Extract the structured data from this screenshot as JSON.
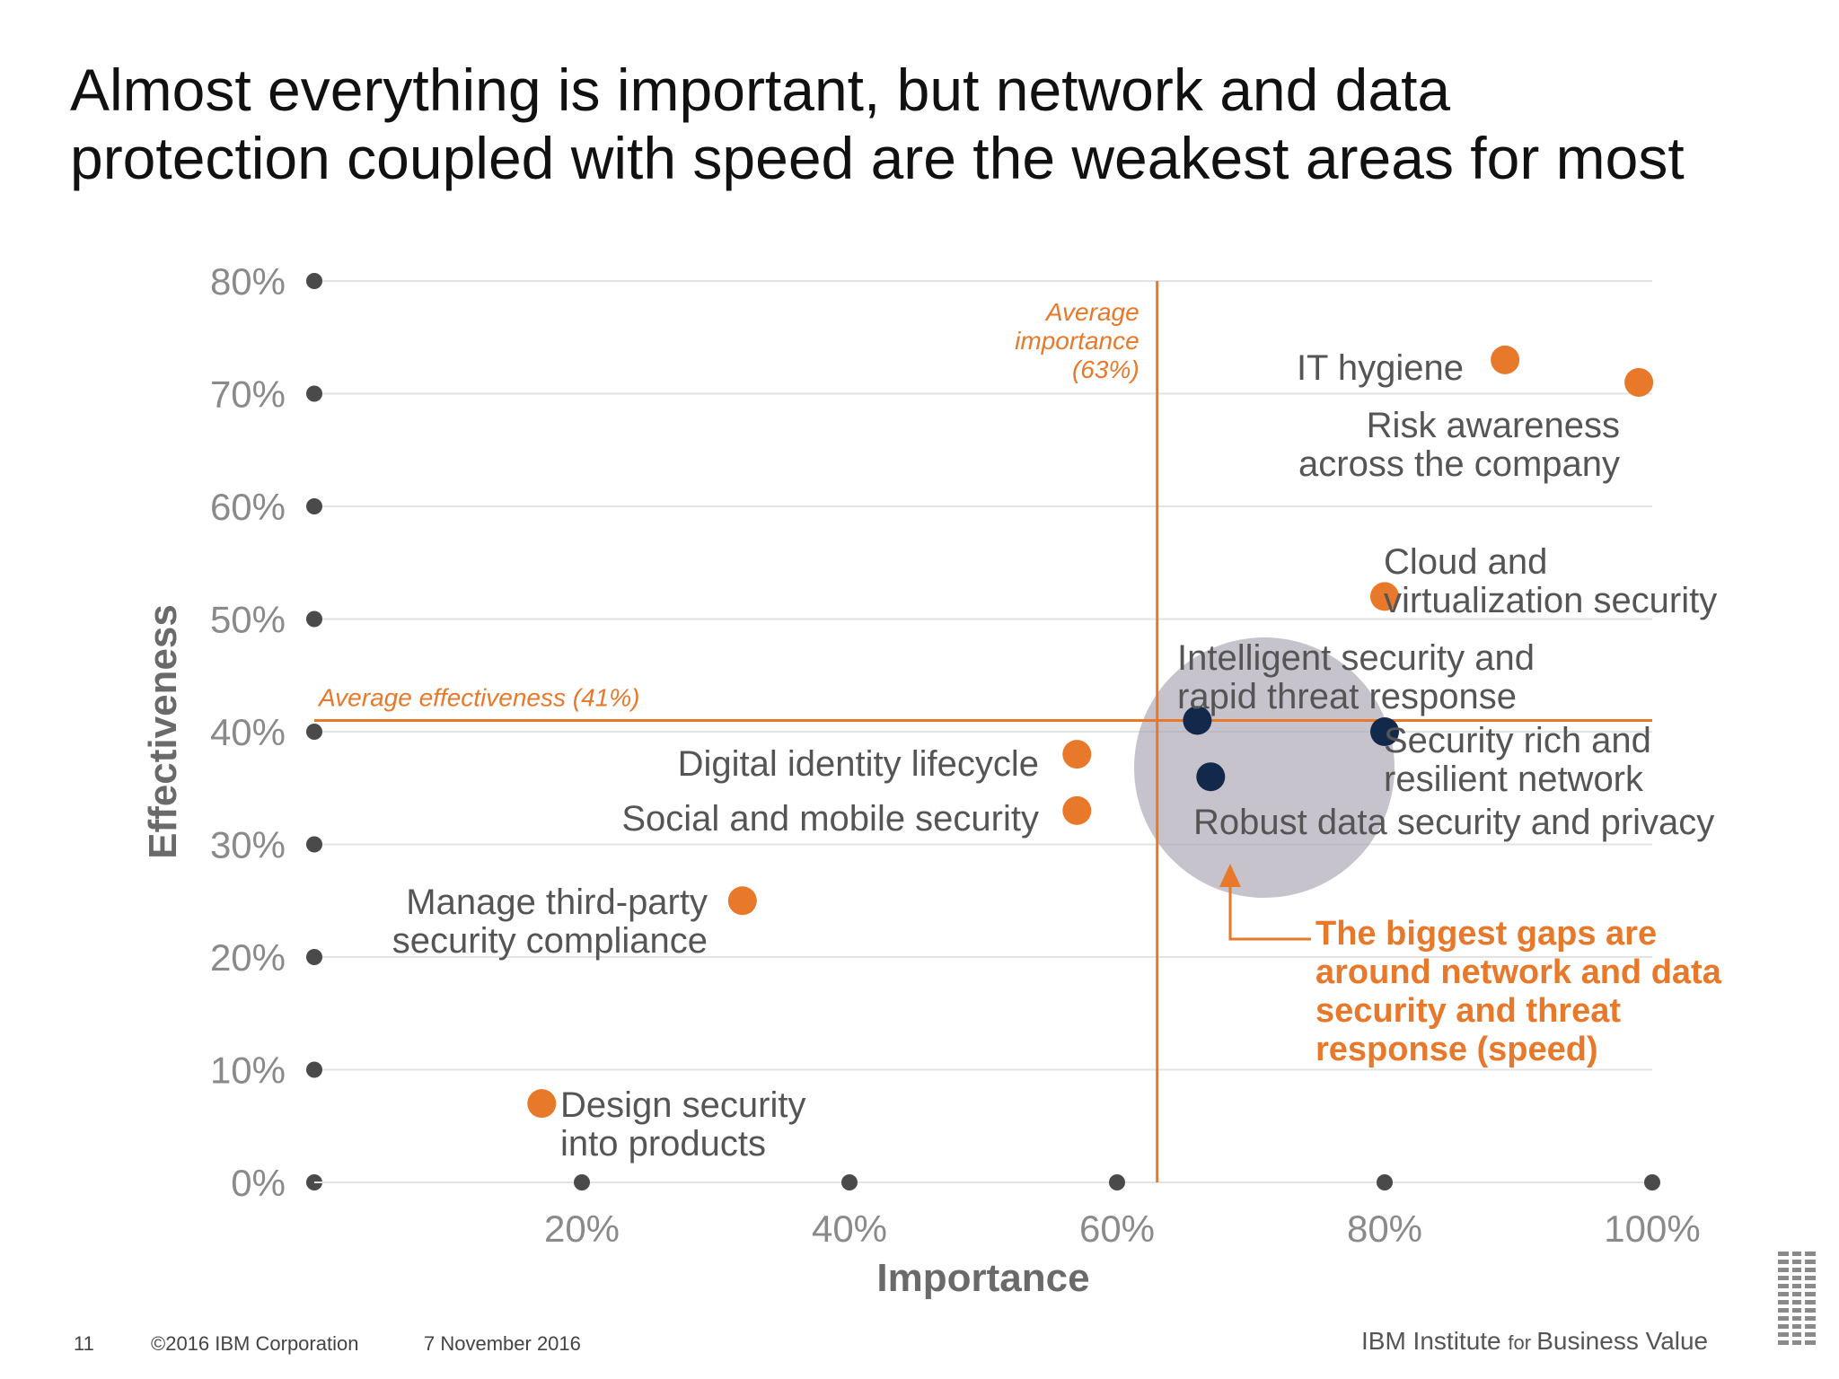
{
  "slide": {
    "title_line1": "Almost everything is important, but network and data",
    "title_line2": "protection coupled with speed are the weakest areas for most"
  },
  "footer": {
    "page_number": "11",
    "copyright": "©2016 IBM Corporation",
    "date": "7 November 2016",
    "brand_a": "IBM Institute ",
    "brand_b": "for ",
    "brand_c": "Business Value"
  },
  "colors": {
    "orange": "#e8782a",
    "navy": "#13294b",
    "axis_dot": "#4a4a4a",
    "grid": "#e3e3e3",
    "highlight": "#a8a3b1",
    "label": "#555555"
  },
  "chart_data": {
    "type": "scatter",
    "xlabel": "Importance",
    "ylabel": "Effectiveness",
    "xlim": [
      0,
      100
    ],
    "ylim": [
      0,
      80
    ],
    "x_ticks": [
      "20%",
      "40%",
      "60%",
      "80%",
      "100%"
    ],
    "y_ticks": [
      "0%",
      "10%",
      "20%",
      "30%",
      "40%",
      "50%",
      "60%",
      "70%",
      "80%"
    ],
    "grid": true,
    "reference_lines": [
      {
        "axis": "x",
        "value": 63,
        "label": [
          "Average",
          "importance",
          "(63%)"
        ]
      },
      {
        "axis": "y",
        "value": 41,
        "label": [
          "Average effectiveness (41%)"
        ]
      }
    ],
    "points": [
      {
        "label": [
          "IT hygiene"
        ],
        "x": 89,
        "y": 73,
        "group": "orange"
      },
      {
        "label": [
          "Risk awareness",
          "across the company"
        ],
        "x": 99,
        "y": 71,
        "group": "orange"
      },
      {
        "label": [
          "Cloud and",
          "virtualization security"
        ],
        "x": 80,
        "y": 52,
        "group": "orange"
      },
      {
        "label": [
          "Intelligent security and",
          "rapid threat response"
        ],
        "x": 66,
        "y": 41,
        "group": "navy"
      },
      {
        "label": [
          "Security rich and",
          "resilient network"
        ],
        "x": 80,
        "y": 40,
        "group": "navy"
      },
      {
        "label": [
          "Robust data security and privacy"
        ],
        "x": 67,
        "y": 36,
        "group": "navy"
      },
      {
        "label": [
          "Digital identity lifecycle"
        ],
        "x": 57,
        "y": 38,
        "group": "orange"
      },
      {
        "label": [
          "Social and mobile security"
        ],
        "x": 57,
        "y": 33,
        "group": "orange"
      },
      {
        "label": [
          "Manage third-party",
          "security compliance"
        ],
        "x": 32,
        "y": 25,
        "group": "orange"
      },
      {
        "label": [
          "Design security",
          "into products"
        ],
        "x": 17,
        "y": 7,
        "group": "orange"
      }
    ],
    "annotation": [
      "The biggest gaps are",
      "around network and data",
      "security and threat",
      "response (speed)"
    ]
  }
}
